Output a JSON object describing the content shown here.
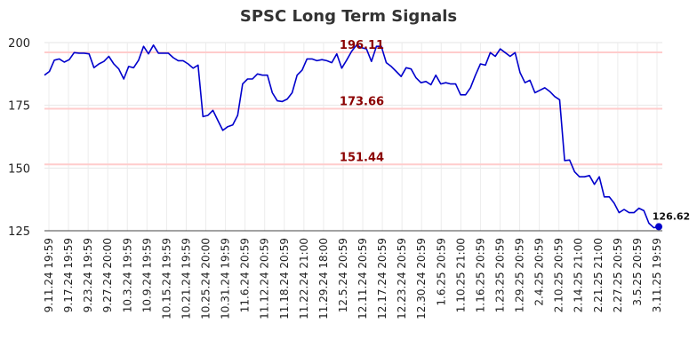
{
  "chart_data": {
    "type": "line",
    "title": "SPSC Long Term Signals",
    "xlabel": "",
    "ylabel": "",
    "ylim": [
      125,
      200
    ],
    "yticks": [
      125,
      150,
      175,
      200
    ],
    "grid": true,
    "x_tick_labels": [
      "9.11.24 19:59",
      "9.17.24 19:59",
      "9.23.24 19:59",
      "9.27.24 20:00",
      "10.3.24 19:59",
      "10.9.24 19:59",
      "10.15.24 19:59",
      "10.21.24 19:59",
      "10.25.24 20:00",
      "10.31.24 19:59",
      "11.6.24 20:59",
      "11.12.24 20:59",
      "11.18.24 20:59",
      "11.22.24 21:00",
      "11.29.24 18:00",
      "12.5.24 20:59",
      "12.11.24 20:59",
      "12.17.24 20:59",
      "12.23.24 20:59",
      "12.30.24 20:59",
      "1.6.25 20:59",
      "1.10.25 21:00",
      "1.16.25 20:59",
      "1.23.25 20:59",
      "1.29.25 20:59",
      "2.4.25 20:59",
      "2.10.25 20:59",
      "2.14.25 21:00",
      "2.21.25 21:00",
      "2.27.25 20:59",
      "3.5.25 20:59",
      "3.11.25 19:59"
    ],
    "levels": [
      {
        "value": 196.11,
        "label": "196.11",
        "line_color": "#ffcccc",
        "text_color": "#8b0000"
      },
      {
        "value": 173.66,
        "label": "173.66",
        "line_color": "#ffcccc",
        "text_color": "#8b0000"
      },
      {
        "value": 151.44,
        "label": "151.44",
        "line_color": "#ffcccc",
        "text_color": "#8b0000"
      }
    ],
    "series": [
      {
        "color": "#0000cc",
        "values": [
          187,
          188.5,
          193,
          193.5,
          192.2,
          193.2,
          196,
          195.8,
          195.8,
          195.5,
          190,
          191.5,
          192.5,
          194.5,
          191.5,
          189.5,
          185.5,
          190.5,
          190,
          193,
          198.5,
          195.5,
          199,
          195.8,
          195.8,
          195.8,
          194,
          192.8,
          192.8,
          191.5,
          189.8,
          191,
          170.5,
          171,
          173,
          169,
          165,
          166.5,
          167.2,
          171,
          183.5,
          185.5,
          185.5,
          187.5,
          187,
          187,
          180,
          176.8,
          176.5,
          177.5,
          180,
          187,
          189,
          193.5,
          193.5,
          192.8,
          193.2,
          192.8,
          192,
          195.5,
          189.8,
          193,
          196.5,
          199,
          198,
          197.5,
          192.5,
          198.5,
          198.5,
          192,
          190.5,
          188.5,
          186.5,
          190,
          189.5,
          186,
          184,
          184.5,
          183.2,
          187,
          183.5,
          184,
          183.5,
          183.5,
          179.2,
          179.2,
          182,
          187,
          191.5,
          191,
          196,
          194.5,
          197.5,
          196,
          194.5,
          196,
          188,
          184,
          185,
          180,
          181,
          182,
          180.5,
          178.5,
          177.2,
          153,
          153.2,
          148.5,
          146.5,
          146.5,
          147,
          143.5,
          146.5,
          138.5,
          138.5,
          136,
          132.2,
          133.5,
          132.2,
          132.2,
          134,
          133,
          128,
          126.2,
          126.62
        ]
      }
    ],
    "last_value": 126.62,
    "last_value_label": "126.62"
  }
}
